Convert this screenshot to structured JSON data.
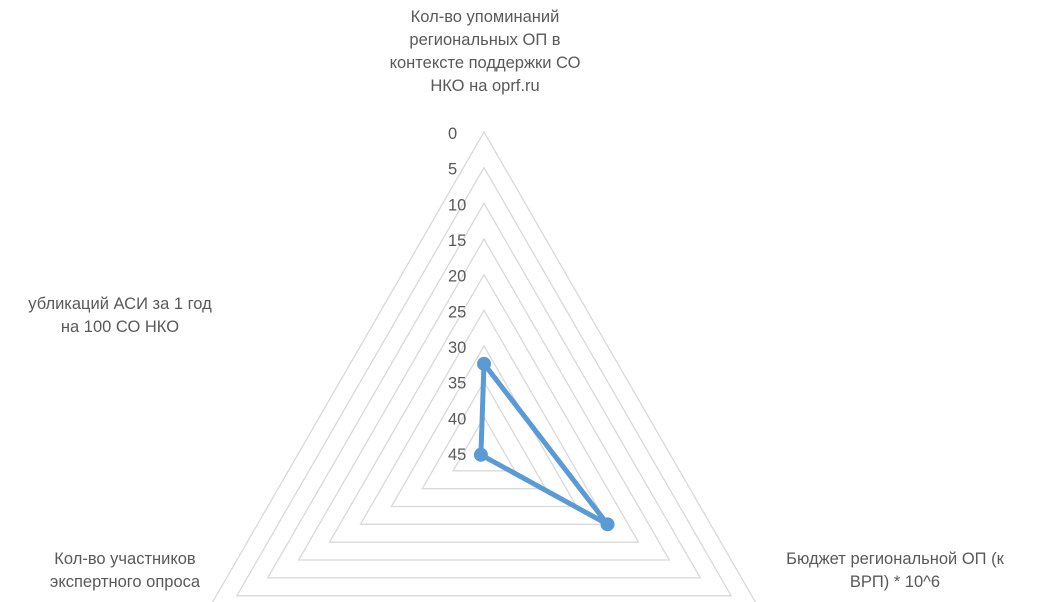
{
  "chart_data": {
    "type": "radar",
    "axes": [
      {
        "lines": [
          "Кол-во упоминаний",
          "региональных ОП в",
          "контексте поддержки СО",
          "НКО на oprf.ru"
        ]
      },
      {
        "lines": [
          "Бюджет региональной ОП (к",
          "ВРП) * 10^6"
        ]
      },
      {
        "lines": [
          "Кол-во участников",
          "экспертного опроса"
        ]
      }
    ],
    "tick_labels": [
      "0",
      "5",
      "10",
      "15",
      "20",
      "25",
      "30",
      "35",
      "40",
      "45"
    ],
    "range": [
      0,
      45
    ],
    "reversed": true,
    "series": [
      {
        "values": [
          32.5,
          25,
          44.5
        ],
        "color": "#5B9BD5"
      }
    ],
    "grid_color": "#D9D9D9"
  },
  "partial_label": {
    "lines": [
      "убликаций АСИ за 1 год",
      "на 100 СО НКО"
    ]
  }
}
